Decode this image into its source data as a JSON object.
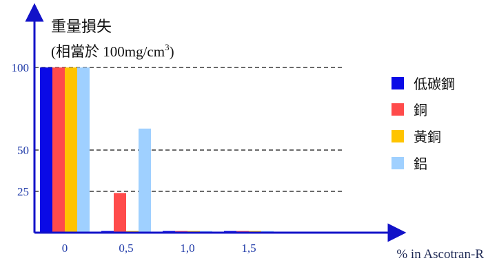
{
  "chart_data": {
    "type": "bar",
    "title_line1": "重量損失",
    "title_line2_prefix": "(相當於 100mg/cm",
    "title_line2_sup": "3",
    "title_line2_suffix": ")",
    "xlabel": "% in Ascotran-R",
    "ylabel": "",
    "categories": [
      "0",
      "0,5",
      "1,0",
      "1,5"
    ],
    "yticks": [
      100,
      50,
      25
    ],
    "ylim": [
      0,
      100
    ],
    "grid": "dashed at yticks",
    "legend_position": "right",
    "series": [
      {
        "name": "低碳鋼",
        "color": "#0a0ae6",
        "values": [
          100,
          1,
          1,
          1
        ]
      },
      {
        "name": "銅",
        "color": "#ff4b4b",
        "values": [
          100,
          24,
          1,
          1
        ]
      },
      {
        "name": "黃銅",
        "color": "#ffc400",
        "values": [
          100,
          1,
          1,
          1
        ]
      },
      {
        "name": "鋁",
        "color": "#9fd0ff",
        "values": [
          100,
          63,
          1,
          1
        ]
      }
    ],
    "axis_color": "#1212c8",
    "gridline_color": "#111111",
    "tick_text_color": "#1f3aa8"
  }
}
